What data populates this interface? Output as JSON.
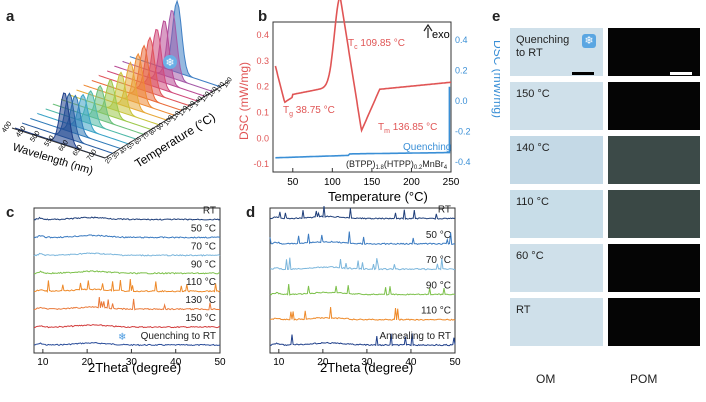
{
  "panels": {
    "a": {
      "label": "a",
      "xlabel": "Wavelength (nm)",
      "ylabel": "Temperature (°C)",
      "wl_ticks": [
        "400",
        "450",
        "500",
        "550",
        "600",
        "650",
        "700"
      ],
      "temp_ticks": [
        "25",
        "35",
        "45",
        "55",
        "65",
        "75",
        "80",
        "90",
        "100",
        "110",
        "120",
        "130",
        "140",
        "150",
        "160",
        "170",
        "180"
      ],
      "ridges": [
        {
          "color": "#1f3f8a",
          "peak": 0.55,
          "amp": 0.55
        },
        {
          "color": "#2a5fa3",
          "peak": 0.52,
          "amp": 0.48
        },
        {
          "color": "#2f7ab8",
          "peak": 0.5,
          "amp": 0.4
        },
        {
          "color": "#3aa3c7",
          "peak": 0.5,
          "amp": 0.36
        },
        {
          "color": "#4fb9a8",
          "peak": 0.5,
          "amp": 0.35
        },
        {
          "color": "#6cc07a",
          "peak": 0.52,
          "amp": 0.36
        },
        {
          "color": "#9dc94a",
          "peak": 0.55,
          "amp": 0.38
        },
        {
          "color": "#c9c43a",
          "peak": 0.58,
          "amp": 0.42
        },
        {
          "color": "#e7a93a",
          "peak": 0.6,
          "amp": 0.48
        },
        {
          "color": "#ee8a34",
          "peak": 0.6,
          "amp": 0.52
        },
        {
          "color": "#e96c3a",
          "peak": 0.58,
          "amp": 0.55
        },
        {
          "color": "#e0555a",
          "peak": 0.56,
          "amp": 0.58
        },
        {
          "color": "#d04a7a",
          "peak": 0.55,
          "amp": 0.62
        },
        {
          "color": "#b94a94",
          "peak": 0.55,
          "amp": 0.66
        },
        {
          "color": "#a45aa8",
          "peak": 0.55,
          "amp": 0.72
        },
        {
          "color": "#3f7fc4",
          "peak": 0.52,
          "amp": 0.75
        }
      ]
    },
    "b": {
      "label": "b",
      "xlabel": "Temperature (°C)",
      "ylabel_left": "DSC (mW/mg)",
      "ylabel_right": "DSC (mW/mg)",
      "exo": "exo",
      "quench_label": "Quenching",
      "compound": "(BTPP)1.8(HTPP)0.2MnBr4",
      "compound_parts": {
        "a": "(BTPP)",
        "s1": "1.8",
        "b": "(HTPP)",
        "s2": "0.2",
        "c": "MnBr",
        "s3": "4"
      },
      "annotations": {
        "tc": {
          "sym": "T",
          "sub": "c",
          "val": " 109.85 °C"
        },
        "tg": {
          "sym": "T",
          "sub": "g",
          "val": " 38.75 °C"
        },
        "tm": {
          "sym": "T",
          "sub": "m",
          "val": " 136.85 °C"
        }
      },
      "x_ticks": [
        "50",
        "100",
        "150",
        "200",
        "250"
      ],
      "yl_ticks": [
        "0.4",
        "0.3",
        "0.2",
        "0.1",
        "0.0",
        "-0.1"
      ],
      "yr_ticks": [
        "0.4",
        "0.2",
        "0.0",
        "-0.2",
        "-0.4"
      ],
      "colors": {
        "left": "#e05555",
        "right": "#3a8fd6"
      }
    },
    "c": {
      "label": "c",
      "xlabel": "2Theta  (degree)",
      "x_ticks": [
        "10",
        "20",
        "30",
        "40",
        "50"
      ],
      "traces": [
        {
          "name": "Quenching to RT",
          "color": "#2a4d9a",
          "has_icon": true
        },
        {
          "name": "150 °C",
          "color": "#d23b3b"
        },
        {
          "name": "130 °C",
          "color": "#ea7a3a"
        },
        {
          "name": "110 °C",
          "color": "#ee8a2a"
        },
        {
          "name": "90 °C",
          "color": "#7cc04a"
        },
        {
          "name": "70 °C",
          "color": "#7bb6dc"
        },
        {
          "name": "50 °C",
          "color": "#3a7ac0"
        },
        {
          "name": "RT",
          "color": "#1f3f7a"
        }
      ]
    },
    "d": {
      "label": "d",
      "xlabel": "2Theta  (degree)",
      "x_ticks": [
        "10",
        "20",
        "30",
        "40",
        "50"
      ],
      "traces": [
        {
          "name": "Annealing to RT",
          "color": "#1f3f8a"
        },
        {
          "name": "110 °C",
          "color": "#ee8a2a"
        },
        {
          "name": "90 °C",
          "color": "#7cc04a"
        },
        {
          "name": "70 °C",
          "color": "#7bb6dc"
        },
        {
          "name": "50 °C",
          "color": "#3a7ac0"
        },
        {
          "name": "RT",
          "color": "#1f3f7a"
        }
      ]
    },
    "e": {
      "label": "e",
      "rows": [
        "Quenching\nto RT",
        "150 °C",
        "140 °C",
        "110 °C",
        "60 °C",
        "RT"
      ],
      "col_om": "OM",
      "col_pom": "POM"
    }
  }
}
